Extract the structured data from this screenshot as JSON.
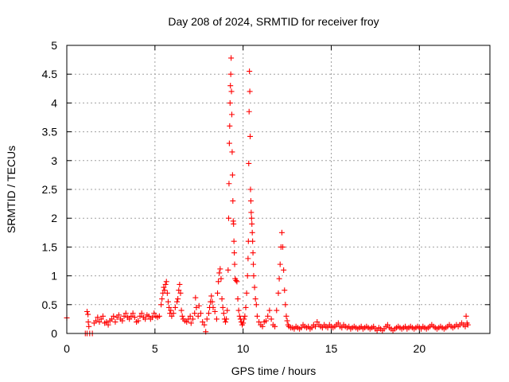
{
  "chart_data": {
    "type": "scatter",
    "title": "Day 208 of 2024, SRMTID for receiver froy",
    "xlabel": "GPS time / hours",
    "ylabel": "SRMTID / TECUs",
    "xlim": [
      0,
      24
    ],
    "ylim": [
      0,
      5
    ],
    "xticks": [
      0,
      5,
      10,
      15,
      20
    ],
    "xtick_labels": [
      "0",
      "5",
      "10",
      "15",
      "20"
    ],
    "yticks": [
      0,
      0.5,
      1,
      1.5,
      2,
      2.5,
      3,
      3.5,
      4,
      4.5,
      5
    ],
    "ytick_labels": [
      "0",
      "0.5",
      "1",
      "1.5",
      "2",
      "2.5",
      "3",
      "3.5",
      "4",
      "4.5",
      "5"
    ],
    "grid": true,
    "marker": "+",
    "series": [
      {
        "name": "froy",
        "color": "#ff0000",
        "points": [
          [
            0.0,
            0.27
          ],
          [
            1.05,
            0.0
          ],
          [
            1.15,
            0.0
          ],
          [
            1.3,
            0.0
          ],
          [
            1.45,
            0.0
          ],
          [
            1.15,
            0.38
          ],
          [
            1.2,
            0.33
          ],
          [
            1.22,
            0.2
          ],
          [
            1.25,
            0.12
          ],
          [
            1.55,
            0.18
          ],
          [
            1.65,
            0.22
          ],
          [
            1.75,
            0.28
          ],
          [
            1.85,
            0.2
          ],
          [
            1.95,
            0.25
          ],
          [
            2.05,
            0.3
          ],
          [
            2.15,
            0.18
          ],
          [
            2.25,
            0.2
          ],
          [
            2.35,
            0.15
          ],
          [
            2.45,
            0.22
          ],
          [
            2.55,
            0.25
          ],
          [
            2.65,
            0.3
          ],
          [
            2.75,
            0.2
          ],
          [
            2.85,
            0.28
          ],
          [
            2.95,
            0.32
          ],
          [
            3.05,
            0.25
          ],
          [
            3.15,
            0.22
          ],
          [
            3.25,
            0.3
          ],
          [
            3.35,
            0.35
          ],
          [
            3.45,
            0.28
          ],
          [
            3.55,
            0.25
          ],
          [
            3.65,
            0.3
          ],
          [
            3.75,
            0.35
          ],
          [
            3.85,
            0.28
          ],
          [
            3.95,
            0.2
          ],
          [
            4.05,
            0.22
          ],
          [
            4.15,
            0.3
          ],
          [
            4.25,
            0.35
          ],
          [
            4.35,
            0.28
          ],
          [
            4.45,
            0.25
          ],
          [
            4.55,
            0.32
          ],
          [
            4.65,
            0.3
          ],
          [
            4.75,
            0.25
          ],
          [
            4.85,
            0.28
          ],
          [
            4.95,
            0.35
          ],
          [
            5.05,
            0.3
          ],
          [
            5.15,
            0.28
          ],
          [
            5.25,
            0.3
          ],
          [
            5.35,
            0.5
          ],
          [
            5.4,
            0.6
          ],
          [
            5.45,
            0.7
          ],
          [
            5.5,
            0.8
          ],
          [
            5.55,
            0.75
          ],
          [
            5.6,
            0.85
          ],
          [
            5.65,
            0.9
          ],
          [
            5.7,
            0.7
          ],
          [
            5.75,
            0.55
          ],
          [
            5.8,
            0.45
          ],
          [
            5.85,
            0.35
          ],
          [
            5.9,
            0.4
          ],
          [
            5.95,
            0.3
          ],
          [
            6.05,
            0.35
          ],
          [
            6.15,
            0.45
          ],
          [
            6.25,
            0.55
          ],
          [
            6.3,
            0.6
          ],
          [
            6.35,
            0.75
          ],
          [
            6.4,
            0.85
          ],
          [
            6.45,
            0.7
          ],
          [
            6.5,
            0.4
          ],
          [
            6.55,
            0.3
          ],
          [
            6.6,
            0.25
          ],
          [
            6.7,
            0.22
          ],
          [
            6.8,
            0.2
          ],
          [
            6.9,
            0.25
          ],
          [
            7.0,
            0.3
          ],
          [
            7.05,
            0.18
          ],
          [
            7.15,
            0.25
          ],
          [
            7.25,
            0.35
          ],
          [
            7.3,
            0.62
          ],
          [
            7.35,
            0.45
          ],
          [
            7.45,
            0.3
          ],
          [
            7.5,
            0.48
          ],
          [
            7.6,
            0.35
          ],
          [
            7.7,
            0.2
          ],
          [
            7.8,
            0.15
          ],
          [
            7.88,
            0.03
          ],
          [
            7.95,
            0.25
          ],
          [
            8.05,
            0.35
          ],
          [
            8.1,
            0.45
          ],
          [
            8.15,
            0.55
          ],
          [
            8.2,
            0.65
          ],
          [
            8.25,
            0.55
          ],
          [
            8.3,
            0.45
          ],
          [
            8.4,
            0.38
          ],
          [
            8.5,
            0.25
          ],
          [
            8.55,
            0.7
          ],
          [
            8.6,
            0.9
          ],
          [
            8.65,
            1.05
          ],
          [
            8.7,
            1.12
          ],
          [
            8.75,
            0.95
          ],
          [
            8.8,
            0.6
          ],
          [
            8.85,
            0.45
          ],
          [
            8.9,
            0.35
          ],
          [
            8.95,
            0.25
          ],
          [
            9.0,
            0.2
          ],
          [
            9.05,
            0.25
          ],
          [
            9.1,
            0.4
          ],
          [
            9.15,
            1.1
          ],
          [
            9.18,
            2.0
          ],
          [
            9.2,
            2.6
          ],
          [
            9.22,
            3.3
          ],
          [
            9.24,
            3.6
          ],
          [
            9.26,
            4.0
          ],
          [
            9.28,
            4.3
          ],
          [
            9.3,
            4.5
          ],
          [
            9.32,
            4.78
          ],
          [
            9.34,
            4.2
          ],
          [
            9.36,
            3.8
          ],
          [
            9.38,
            3.15
          ],
          [
            9.4,
            2.75
          ],
          [
            9.42,
            2.3
          ],
          [
            9.44,
            1.95
          ],
          [
            9.46,
            1.9
          ],
          [
            9.48,
            1.6
          ],
          [
            9.5,
            1.4
          ],
          [
            9.52,
            1.2
          ],
          [
            9.55,
            0.95
          ],
          [
            9.6,
            0.92
          ],
          [
            9.65,
            0.9
          ],
          [
            9.7,
            0.6
          ],
          [
            9.75,
            0.4
          ],
          [
            9.8,
            0.3
          ],
          [
            9.85,
            0.25
          ],
          [
            9.9,
            0.2
          ],
          [
            9.95,
            0.15
          ],
          [
            10.0,
            0.18
          ],
          [
            10.05,
            0.25
          ],
          [
            10.1,
            0.3
          ],
          [
            10.15,
            0.45
          ],
          [
            10.2,
            0.7
          ],
          [
            10.25,
            1.0
          ],
          [
            10.28,
            1.3
          ],
          [
            10.3,
            1.6
          ],
          [
            10.32,
            2.95
          ],
          [
            10.34,
            3.85
          ],
          [
            10.36,
            4.55
          ],
          [
            10.38,
            4.2
          ],
          [
            10.4,
            3.42
          ],
          [
            10.42,
            2.5
          ],
          [
            10.44,
            2.3
          ],
          [
            10.46,
            2.1
          ],
          [
            10.48,
            2.0
          ],
          [
            10.5,
            1.9
          ],
          [
            10.52,
            1.75
          ],
          [
            10.54,
            1.6
          ],
          [
            10.56,
            1.4
          ],
          [
            10.58,
            1.2
          ],
          [
            10.6,
            1.0
          ],
          [
            10.65,
            0.8
          ],
          [
            10.7,
            0.6
          ],
          [
            10.75,
            0.5
          ],
          [
            10.8,
            0.3
          ],
          [
            10.9,
            0.2
          ],
          [
            11.0,
            0.15
          ],
          [
            11.1,
            0.12
          ],
          [
            11.2,
            0.2
          ],
          [
            11.3,
            0.22
          ],
          [
            11.4,
            0.3
          ],
          [
            11.5,
            0.4
          ],
          [
            11.6,
            0.25
          ],
          [
            11.7,
            0.15
          ],
          [
            11.8,
            0.12
          ],
          [
            11.9,
            0.4
          ],
          [
            12.0,
            0.7
          ],
          [
            12.05,
            0.95
          ],
          [
            12.1,
            1.2
          ],
          [
            12.15,
            1.5
          ],
          [
            12.2,
            1.75
          ],
          [
            12.25,
            1.5
          ],
          [
            12.3,
            1.1
          ],
          [
            12.35,
            0.75
          ],
          [
            12.4,
            0.5
          ],
          [
            12.45,
            0.3
          ],
          [
            12.5,
            0.22
          ],
          [
            12.55,
            0.15
          ],
          [
            12.6,
            0.12
          ],
          [
            12.7,
            0.1
          ],
          [
            12.8,
            0.1
          ],
          [
            12.9,
            0.08
          ],
          [
            13.0,
            0.12
          ],
          [
            13.1,
            0.1
          ],
          [
            13.2,
            0.08
          ],
          [
            13.3,
            0.1
          ],
          [
            13.4,
            0.15
          ],
          [
            13.5,
            0.12
          ],
          [
            13.6,
            0.1
          ],
          [
            13.7,
            0.12
          ],
          [
            13.8,
            0.08
          ],
          [
            13.9,
            0.1
          ],
          [
            14.0,
            0.15
          ],
          [
            14.1,
            0.12
          ],
          [
            14.2,
            0.2
          ],
          [
            14.3,
            0.15
          ],
          [
            14.4,
            0.12
          ],
          [
            14.5,
            0.1
          ],
          [
            14.6,
            0.15
          ],
          [
            14.7,
            0.12
          ],
          [
            14.8,
            0.1
          ],
          [
            14.9,
            0.15
          ],
          [
            15.0,
            0.12
          ],
          [
            15.1,
            0.1
          ],
          [
            15.2,
            0.12
          ],
          [
            15.3,
            0.15
          ],
          [
            15.4,
            0.18
          ],
          [
            15.5,
            0.12
          ],
          [
            15.6,
            0.1
          ],
          [
            15.7,
            0.15
          ],
          [
            15.8,
            0.12
          ],
          [
            15.9,
            0.1
          ],
          [
            16.0,
            0.12
          ],
          [
            16.1,
            0.08
          ],
          [
            16.2,
            0.1
          ],
          [
            16.3,
            0.12
          ],
          [
            16.4,
            0.1
          ],
          [
            16.5,
            0.08
          ],
          [
            16.6,
            0.1
          ],
          [
            16.7,
            0.12
          ],
          [
            16.8,
            0.08
          ],
          [
            16.9,
            0.1
          ],
          [
            17.0,
            0.12
          ],
          [
            17.1,
            0.1
          ],
          [
            17.2,
            0.08
          ],
          [
            17.3,
            0.1
          ],
          [
            17.4,
            0.12
          ],
          [
            17.5,
            0.08
          ],
          [
            17.6,
            0.05
          ],
          [
            17.7,
            0.1
          ],
          [
            17.8,
            0.08
          ],
          [
            17.9,
            0.05
          ],
          [
            18.0,
            0.08
          ],
          [
            18.1,
            0.12
          ],
          [
            18.2,
            0.15
          ],
          [
            18.3,
            0.1
          ],
          [
            18.4,
            0.08
          ],
          [
            18.5,
            0.05
          ],
          [
            18.6,
            0.08
          ],
          [
            18.7,
            0.1
          ],
          [
            18.8,
            0.12
          ],
          [
            18.9,
            0.1
          ],
          [
            19.0,
            0.08
          ],
          [
            19.1,
            0.1
          ],
          [
            19.2,
            0.12
          ],
          [
            19.3,
            0.08
          ],
          [
            19.4,
            0.1
          ],
          [
            19.5,
            0.12
          ],
          [
            19.6,
            0.1
          ],
          [
            19.7,
            0.08
          ],
          [
            19.8,
            0.1
          ],
          [
            19.9,
            0.12
          ],
          [
            20.0,
            0.1
          ],
          [
            20.1,
            0.08
          ],
          [
            20.2,
            0.12
          ],
          [
            20.3,
            0.1
          ],
          [
            20.4,
            0.08
          ],
          [
            20.5,
            0.1
          ],
          [
            20.6,
            0.12
          ],
          [
            20.7,
            0.15
          ],
          [
            20.8,
            0.12
          ],
          [
            20.9,
            0.1
          ],
          [
            21.0,
            0.08
          ],
          [
            21.1,
            0.1
          ],
          [
            21.2,
            0.12
          ],
          [
            21.3,
            0.1
          ],
          [
            21.4,
            0.08
          ],
          [
            21.5,
            0.1
          ],
          [
            21.6,
            0.12
          ],
          [
            21.7,
            0.15
          ],
          [
            21.8,
            0.12
          ],
          [
            21.9,
            0.1
          ],
          [
            22.0,
            0.12
          ],
          [
            22.1,
            0.15
          ],
          [
            22.2,
            0.12
          ],
          [
            22.3,
            0.15
          ],
          [
            22.4,
            0.18
          ],
          [
            22.5,
            0.15
          ],
          [
            22.6,
            0.12
          ],
          [
            22.65,
            0.3
          ],
          [
            22.7,
            0.18
          ],
          [
            22.75,
            0.15
          ]
        ]
      }
    ]
  }
}
